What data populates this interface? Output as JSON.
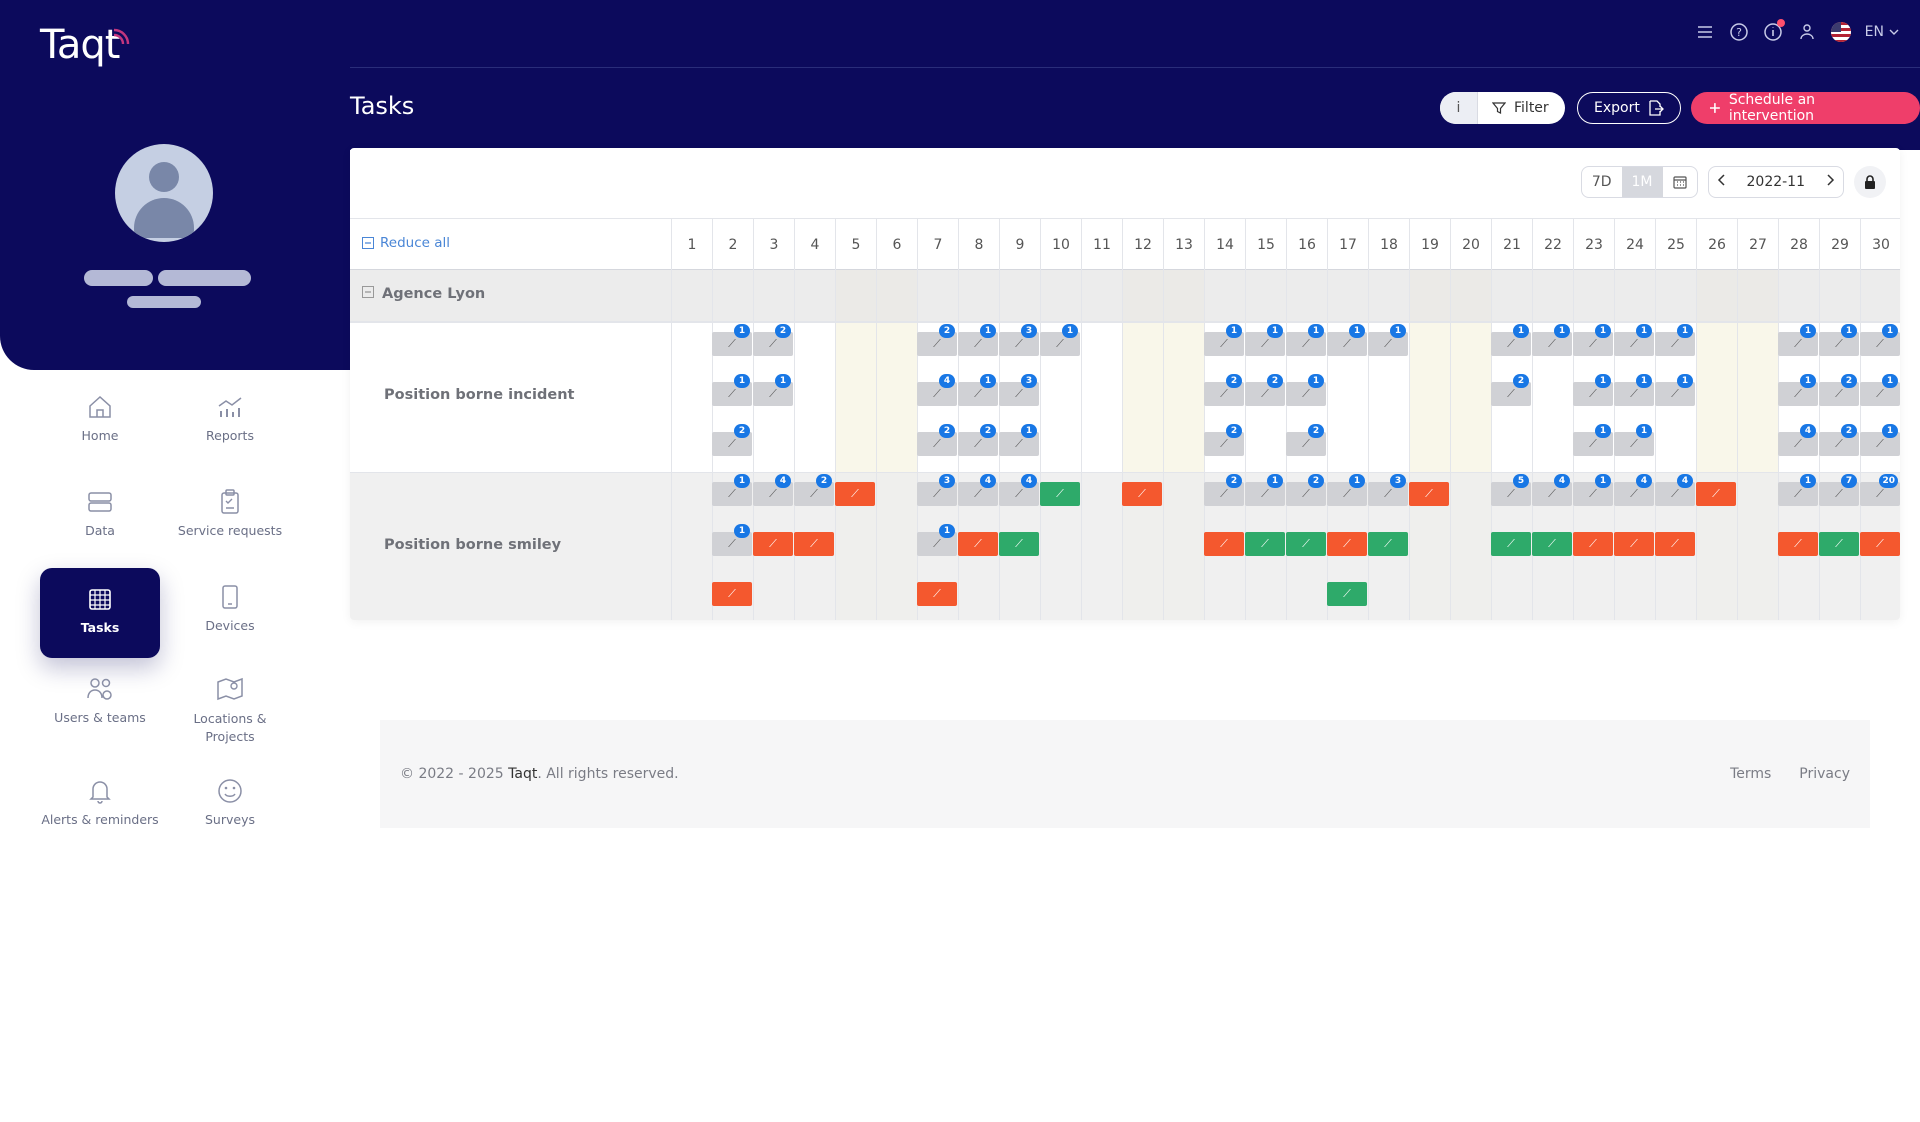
{
  "app": {
    "logo": "Taqt"
  },
  "header": {
    "language": "EN",
    "page_title": "Tasks",
    "info_label": "i",
    "filter_label": "Filter",
    "export_label": "Export",
    "schedule_label": "Schedule an intervention"
  },
  "nav": [
    {
      "label": "Home",
      "icon": "home-icon"
    },
    {
      "label": "Reports",
      "icon": "reports-icon"
    },
    {
      "label": "Data",
      "icon": "data-icon"
    },
    {
      "label": "Service requests",
      "icon": "clipboard-icon"
    },
    {
      "label": "Tasks",
      "icon": "calendar-icon",
      "active": true
    },
    {
      "label": "Devices",
      "icon": "tablet-icon"
    },
    {
      "label": "Users & teams",
      "icon": "users-icon"
    },
    {
      "label": "Locations & Projects",
      "icon": "map-icon"
    },
    {
      "label": "Alerts & reminders",
      "icon": "bell-icon"
    },
    {
      "label": "Surveys",
      "icon": "smiley-icon"
    }
  ],
  "calendar": {
    "view_7d": "7D",
    "view_1m": "1M",
    "active_view": "1M",
    "month": "2022-11",
    "reduce_all": "Reduce all",
    "days": [
      "1",
      "2",
      "3",
      "4",
      "5",
      "6",
      "7",
      "8",
      "9",
      "10",
      "11",
      "12",
      "13",
      "14",
      "15",
      "16",
      "17",
      "18",
      "19",
      "20",
      "21",
      "22",
      "23",
      "24",
      "25",
      "26",
      "27",
      "28",
      "29",
      "30"
    ],
    "weekend_days": [
      5,
      6,
      12,
      13,
      19,
      20,
      26,
      27
    ],
    "group": "Agence Lyon",
    "rows": [
      {
        "label": "Position borne incident"
      },
      {
        "label": "Position borne smiley"
      }
    ]
  },
  "footer": {
    "copyright_prefix": "© 2022 - 2025 ",
    "brand": "Taqt",
    "copyright_suffix": ". All rights reserved.",
    "terms": "Terms",
    "privacy": "Privacy"
  },
  "colors": {
    "primary": "#0c0a5c",
    "accent": "#ef3e6a",
    "chip_gray": "#d0d1d5",
    "chip_red": "#f4582e",
    "chip_green": "#2eaa6a",
    "badge": "#1877e5"
  }
}
